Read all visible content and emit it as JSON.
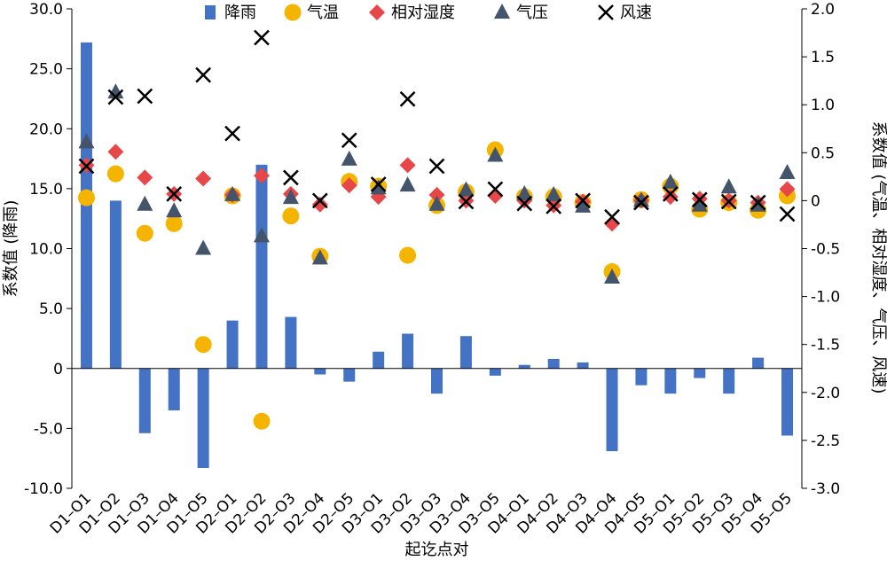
{
  "chart_data": {
    "type": "bar",
    "xlabel": "起讫点对",
    "ylabel_left": "系数值 (降雨)",
    "ylabel_right": "系数值 (气温、相对湿度、气压、风速)",
    "left_axis": {
      "ylim": [
        -10,
        30
      ],
      "ticks": [
        "-10.0",
        "-5.0",
        "0",
        "5.0",
        "10.0",
        "15.0",
        "20.0",
        "25.0",
        "30.0"
      ]
    },
    "right_axis": {
      "ylim": [
        -3,
        2
      ],
      "ticks": [
        "-3.0",
        "-2.5",
        "-2.0",
        "-1.5",
        "-1.0",
        "-0.5",
        "0",
        "0.5",
        "1.0",
        "1.5",
        "2.0"
      ]
    },
    "categories": [
      "D1–O1",
      "D1–O2",
      "D1–O3",
      "D1–O4",
      "D1–O5",
      "D2–O1",
      "D2–O2",
      "D2–O3",
      "D2–O4",
      "D2–O5",
      "D3–O1",
      "D3–O2",
      "D3–O3",
      "D3–O4",
      "D3–O5",
      "D4–O1",
      "D4–O2",
      "D4–O3",
      "D4–O4",
      "D4–O5",
      "D5–O1",
      "D5–O2",
      "D5–O3",
      "D5–O4",
      "D5–O5"
    ],
    "legend_position": "top",
    "series": [
      {
        "name": "降雨",
        "kind": "bar",
        "axis": "left",
        "color": "#4472c4",
        "marker": "bar",
        "values": [
          27.2,
          14.0,
          -5.4,
          -3.5,
          -8.3,
          4.0,
          17.0,
          4.3,
          -0.5,
          -1.1,
          1.4,
          2.9,
          -2.1,
          2.7,
          -0.6,
          0.3,
          0.8,
          0.5,
          -6.9,
          -1.4,
          -2.1,
          -0.8,
          -2.1,
          0.9,
          -5.6
        ]
      },
      {
        "name": "气温",
        "kind": "scatter",
        "axis": "right",
        "color": "#f5b400",
        "marker": "circle",
        "values": [
          0.03,
          0.28,
          -0.34,
          -0.24,
          -1.5,
          0.05,
          -2.3,
          -0.16,
          -0.58,
          0.2,
          0.15,
          -0.57,
          -0.05,
          0.09,
          0.53,
          0.04,
          0.04,
          -0.02,
          -0.74,
          0.01,
          0.15,
          -0.09,
          -0.02,
          -0.1,
          0.05
        ]
      },
      {
        "name": "相对湿度",
        "kind": "scatter",
        "axis": "right",
        "color": "#e8474a",
        "marker": "diamond",
        "values": [
          0.37,
          0.51,
          0.24,
          0.07,
          0.23,
          0.06,
          0.26,
          0.07,
          -0.04,
          0.16,
          0.04,
          0.37,
          0.06,
          0.0,
          0.05,
          0.0,
          -0.05,
          -0.01,
          -0.24,
          0.0,
          0.04,
          0.02,
          0.0,
          -0.02,
          0.12
        ]
      },
      {
        "name": "气压",
        "kind": "scatter",
        "axis": "right",
        "color": "#44546a",
        "marker": "triangle",
        "values": [
          0.61,
          1.13,
          -0.04,
          -0.11,
          -0.5,
          0.06,
          -0.37,
          0.03,
          -0.6,
          0.43,
          0.13,
          0.16,
          -0.04,
          0.11,
          0.47,
          0.07,
          0.06,
          -0.06,
          -0.8,
          0.0,
          0.19,
          -0.05,
          0.14,
          -0.05,
          0.29
        ]
      },
      {
        "name": "风速",
        "kind": "scatter",
        "axis": "right",
        "color": "#000000",
        "marker": "x",
        "values": [
          0.36,
          1.08,
          1.09,
          0.07,
          1.31,
          0.7,
          1.7,
          0.24,
          0.0,
          0.63,
          0.17,
          1.06,
          0.36,
          -0.01,
          0.12,
          -0.03,
          -0.06,
          0.0,
          -0.17,
          -0.02,
          0.07,
          0.01,
          -0.01,
          -0.02,
          -0.14
        ]
      }
    ]
  }
}
